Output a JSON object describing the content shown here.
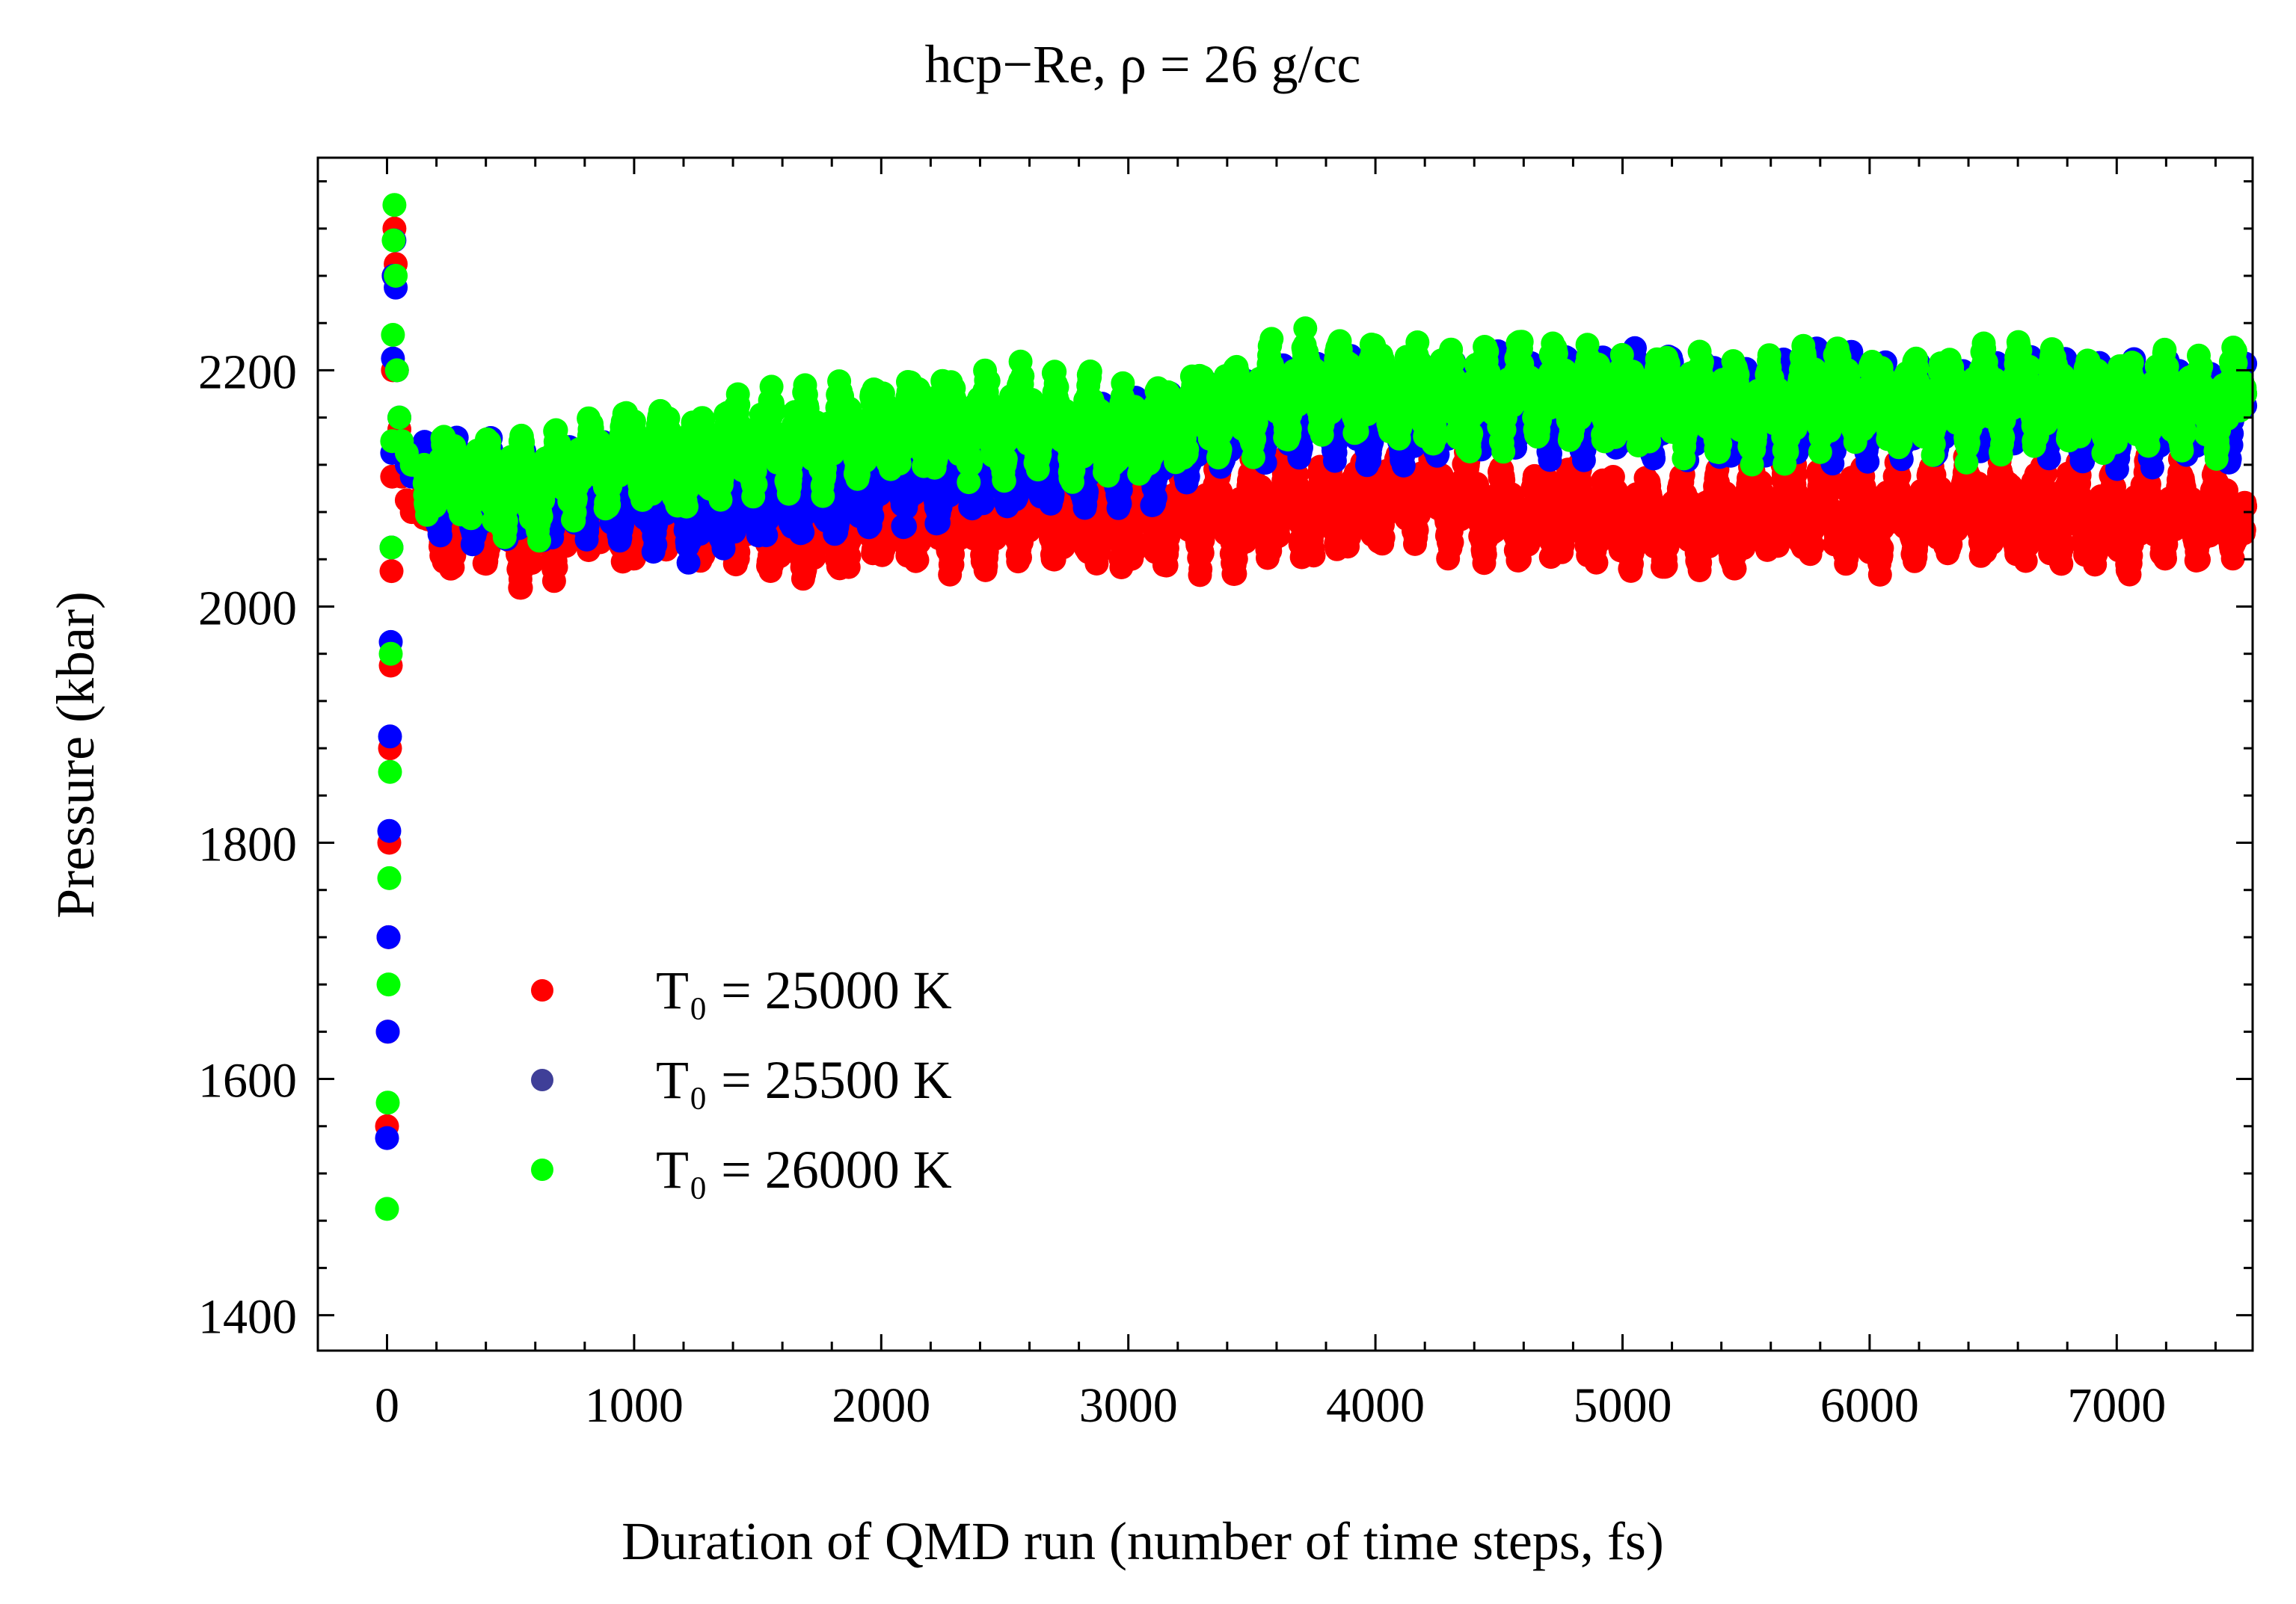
{
  "chart_data": {
    "type": "scatter",
    "title": "hcp−Re, ρ = 26 g/cc",
    "xlabel": "Duration of QMD run (number of time steps, fs)",
    "ylabel": "Pressure (kbar)",
    "xlim": [
      -280,
      7550
    ],
    "ylim": [
      1370,
      2380
    ],
    "x_ticks": [
      0,
      1000,
      2000,
      3000,
      4000,
      5000,
      6000,
      7000
    ],
    "x_tick_labels": [
      "0",
      "1000",
      "2000",
      "3000",
      "4000",
      "5000",
      "6000",
      "7000"
    ],
    "y_ticks": [
      1400,
      1600,
      1800,
      2000,
      2200
    ],
    "y_tick_labels": [
      "1400",
      "1600",
      "1800",
      "2000",
      "2200"
    ],
    "legend_position": "lower-left",
    "series": [
      {
        "name": "T₀ = 25000 K",
        "color": "#ff0000",
        "initial_transient": {
          "x": [
            0,
            3,
            6,
            9,
            12,
            15,
            18,
            21,
            24,
            27,
            30,
            35,
            40,
            50,
            60,
            80,
            100
          ],
          "y": [
            1560,
            1640,
            1720,
            1800,
            1880,
            1950,
            2030,
            2110,
            2200,
            2280,
            2320,
            2290,
            2200,
            2150,
            2110,
            2090,
            2080
          ]
        },
        "x": [
          150,
          250,
          400,
          600,
          800,
          1000,
          1200,
          1400,
          1600,
          1800,
          2000,
          2200,
          2400,
          2600,
          2800,
          3000,
          3200,
          3400,
          3600,
          3800,
          4000,
          4200,
          4400,
          4600,
          4800,
          5000,
          5200,
          5400,
          5600,
          5800,
          6000,
          6200,
          6400,
          6600,
          6800,
          7000,
          7200,
          7400,
          7520
        ],
        "y": [
          2075,
          2065,
          2080,
          2060,
          2090,
          2070,
          2085,
          2075,
          2065,
          2070,
          2080,
          2075,
          2070,
          2085,
          2075,
          2070,
          2080,
          2075,
          2085,
          2080,
          2090,
          2095,
          2085,
          2075,
          2085,
          2070,
          2075,
          2070,
          2085,
          2080,
          2075,
          2080,
          2085,
          2075,
          2080,
          2070,
          2080,
          2075,
          2085
        ]
      },
      {
        "name": "T₀ = 25500 K",
        "color": "#0000ff",
        "legend_color": "#3f3f98",
        "initial_transient": {
          "x": [
            0,
            3,
            6,
            9,
            12,
            15,
            18,
            21,
            24,
            27,
            30,
            35,
            40,
            50,
            60,
            80,
            100
          ],
          "y": [
            1550,
            1640,
            1720,
            1810,
            1890,
            1970,
            2050,
            2130,
            2210,
            2280,
            2310,
            2270,
            2200,
            2160,
            2130,
            2120,
            2110
          ]
        },
        "x": [
          150,
          250,
          400,
          600,
          800,
          1000,
          1200,
          1400,
          1600,
          1800,
          2000,
          2200,
          2400,
          2600,
          2800,
          3000,
          3200,
          3400,
          3600,
          3800,
          4000,
          4200,
          4400,
          4600,
          4800,
          5000,
          5200,
          5400,
          5600,
          5800,
          6000,
          6200,
          6400,
          6600,
          6800,
          7000,
          7200,
          7400,
          7520
        ],
        "y": [
          2110,
          2100,
          2095,
          2090,
          2100,
          2095,
          2085,
          2090,
          2100,
          2095,
          2110,
          2115,
          2120,
          2120,
          2125,
          2130,
          2140,
          2160,
          2165,
          2170,
          2160,
          2165,
          2170,
          2175,
          2170,
          2175,
          2170,
          2165,
          2170,
          2175,
          2170,
          2165,
          2170,
          2175,
          2165,
          2160,
          2165,
          2160,
          2170
        ]
      },
      {
        "name": "T₀ = 26000 K",
        "color": "#00ff00",
        "initial_transient": {
          "x": [
            0,
            3,
            6,
            9,
            12,
            15,
            18,
            21,
            24,
            27,
            30,
            35,
            40,
            50,
            60,
            80,
            100
          ],
          "y": [
            1490,
            1580,
            1680,
            1770,
            1860,
            1960,
            2050,
            2140,
            2230,
            2310,
            2340,
            2280,
            2200,
            2160,
            2140,
            2130,
            2120
          ]
        },
        "x": [
          150,
          250,
          400,
          600,
          800,
          1000,
          1200,
          1400,
          1600,
          1800,
          2000,
          2200,
          2400,
          2600,
          2800,
          3000,
          3200,
          3400,
          3600,
          3800,
          4000,
          4200,
          4400,
          4600,
          4800,
          5000,
          5200,
          5400,
          5600,
          5800,
          6000,
          6200,
          6400,
          6600,
          6800,
          7000,
          7200,
          7400,
          7520
        ],
        "y": [
          2120,
          2110,
          2105,
          2100,
          2120,
          2130,
          2120,
          2135,
          2140,
          2145,
          2150,
          2155,
          2150,
          2160,
          2150,
          2145,
          2155,
          2170,
          2180,
          2190,
          2185,
          2180,
          2175,
          2185,
          2180,
          2170,
          2175,
          2170,
          2165,
          2180,
          2175,
          2170,
          2175,
          2180,
          2175,
          2170,
          2175,
          2170,
          2180
        ]
      }
    ]
  }
}
